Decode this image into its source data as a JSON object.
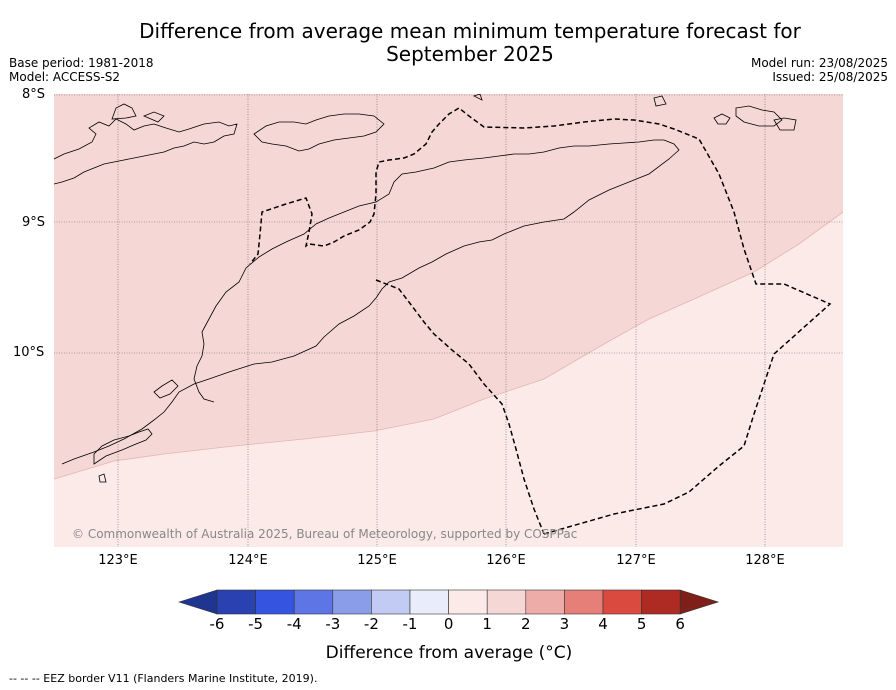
{
  "header": {
    "title_line1": "Difference from average mean minimum temperature forecast for",
    "title_line2": "September 2025",
    "base_period": "Base period: 1981-2018",
    "model": "Model: ACCESS-S2",
    "model_run": "Model run: 23/08/2025",
    "issued": "Issued: 25/08/2025"
  },
  "map": {
    "latitude_labels": [
      "8°S",
      "9°S",
      "10°S"
    ],
    "longitude_labels": [
      "123°E",
      "124°E",
      "125°E",
      "126°E",
      "127°E",
      "128°E"
    ],
    "copyright": "© Commonwealth of Australia 2025, Bureau of Meteorology, supported by COSPPac",
    "zones": [
      {
        "category": "0 to 1",
        "color": "#fbeae8"
      },
      {
        "category": "1 to 2",
        "color": "#f5d7d5"
      }
    ]
  },
  "colorbar": {
    "title": "Difference from average (°C)",
    "tick_labels": [
      "-6",
      "-5",
      "-4",
      "-3",
      "-2",
      "-1",
      "0",
      "1",
      "2",
      "3",
      "4",
      "5",
      "6"
    ],
    "colors": [
      "#1f3590",
      "#2a41b1",
      "#3554e0",
      "#5e75e6",
      "#8a9de9",
      "#c2cbf3",
      "#e9ecfb",
      "#fbeae8",
      "#f5d7d5",
      "#edaca7",
      "#e57f77",
      "#db4a3e",
      "#ad2b22",
      "#7e2019"
    ]
  },
  "footnote": "--  --  -- EEZ border V11 (Flanders Marine Institute, 2019)."
}
